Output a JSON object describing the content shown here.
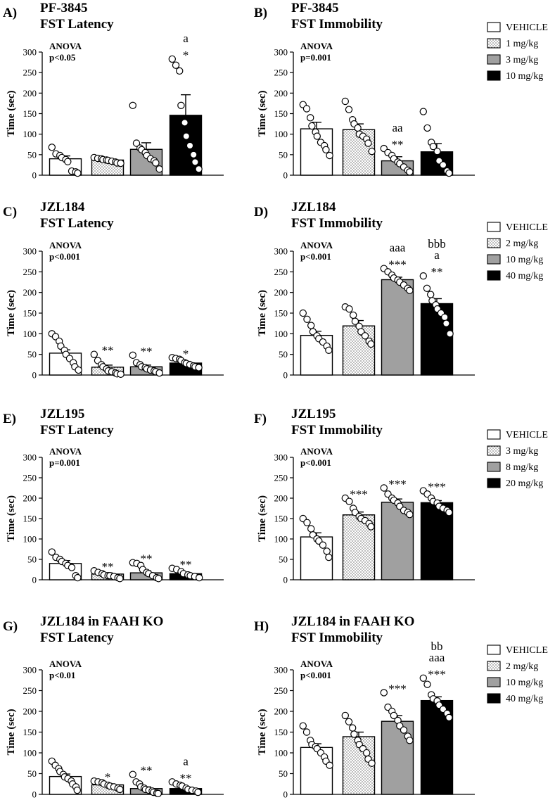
{
  "legends": [
    {
      "entries": [
        "VEHICLE",
        "1 mg/kg",
        "3 mg/kg",
        "10 mg/kg"
      ]
    },
    {
      "entries": [
        "VEHICLE",
        "2 mg/kg",
        "10 mg/kg",
        "40 mg/kg"
      ]
    },
    {
      "entries": [
        "VEHICLE",
        "3 mg/kg",
        "8 mg/kg",
        "20 mg/kg"
      ]
    },
    {
      "entries": [
        "VEHICLE",
        "2 mg/kg",
        "10 mg/kg",
        "40 mg/kg"
      ]
    }
  ],
  "fills": [
    "#ffffff",
    "dots",
    "#a0a0a0",
    "#000000"
  ],
  "chart_data": [
    {
      "type": "bar",
      "panel": "A)",
      "title": [
        "PF-3845",
        "FST Latency"
      ],
      "ylabel": "Time (sec)",
      "ylim": [
        0,
        300
      ],
      "yticks": [
        0,
        50,
        100,
        150,
        200,
        250,
        300
      ],
      "anova": [
        "ANOVA",
        "p<0.05"
      ],
      "values": [
        40,
        37,
        63,
        146
      ],
      "errors": [
        7,
        4,
        16,
        50
      ],
      "points": [
        [
          68,
          52,
          48,
          43,
          38,
          33,
          10,
          8,
          5
        ],
        [
          43,
          41,
          40,
          38,
          37,
          36,
          34,
          32,
          30,
          29
        ],
        [
          170,
          78,
          66,
          62,
          55,
          48,
          40,
          35,
          30,
          15
        ],
        [
          283,
          268,
          254,
          170,
          128,
          95,
          72,
          50,
          32,
          15
        ]
      ],
      "significance": [
        [],
        [],
        [],
        [
          "a",
          "*"
        ]
      ]
    },
    {
      "type": "bar",
      "panel": "B)",
      "title": [
        "PF-3845",
        "FST Immobility"
      ],
      "ylabel": "Time (sec)",
      "ylim": [
        0,
        300
      ],
      "yticks": [
        0,
        50,
        100,
        150,
        200,
        250,
        300
      ],
      "anova": [
        "ANOVA",
        "p=0.001"
      ],
      "values": [
        113,
        111,
        35,
        57
      ],
      "errors": [
        16,
        14,
        10,
        20
      ],
      "points": [
        [
          172,
          162,
          140,
          120,
          105,
          95,
          80,
          72,
          62,
          48
        ],
        [
          180,
          160,
          135,
          125,
          115,
          100,
          95,
          88,
          78,
          58
        ],
        [
          65,
          55,
          48,
          40,
          32,
          28,
          20,
          12,
          8
        ],
        [
          155,
          115,
          80,
          70,
          58,
          35,
          25,
          10,
          5
        ]
      ],
      "significance": [
        [],
        [],
        [
          "aa",
          "**"
        ],
        []
      ]
    },
    {
      "type": "bar",
      "panel": "C)",
      "title": [
        "JZL184",
        "FST Latency"
      ],
      "ylabel": "Time (sec)",
      "ylim": [
        0,
        300
      ],
      "yticks": [
        0,
        50,
        100,
        150,
        200,
        250,
        300
      ],
      "anova": [
        "ANOVA",
        "p<0.001"
      ],
      "values": [
        53,
        19,
        20,
        29
      ],
      "errors": [
        8,
        5,
        4,
        4
      ],
      "points": [
        [
          100,
          93,
          82,
          70,
          60,
          50,
          40,
          30,
          20,
          12
        ],
        [
          50,
          35,
          25,
          20,
          15,
          10,
          8,
          5,
          3,
          2
        ],
        [
          48,
          30,
          25,
          20,
          18,
          15,
          12,
          10,
          8,
          5
        ],
        [
          42,
          40,
          38,
          35,
          30,
          28,
          25,
          22,
          20,
          18
        ]
      ],
      "significance": [
        [],
        [
          "**"
        ],
        [
          "**"
        ],
        [
          "*"
        ]
      ]
    },
    {
      "type": "bar",
      "panel": "D)",
      "title": [
        "JZL184",
        "FST Immobility"
      ],
      "ylabel": "Time (sec)",
      "ylim": [
        0,
        300
      ],
      "yticks": [
        0,
        50,
        100,
        150,
        200,
        250,
        300
      ],
      "anova": [
        "ANOVA",
        "p<0.001"
      ],
      "values": [
        96,
        119,
        231,
        173
      ],
      "errors": [
        10,
        13,
        6,
        12
      ],
      "points": [
        [
          150,
          135,
          120,
          105,
          95,
          88,
          80,
          70,
          60
        ],
        [
          165,
          160,
          145,
          130,
          118,
          105,
          95,
          82,
          75
        ],
        [
          258,
          250,
          242,
          235,
          230,
          225,
          218,
          210,
          205
        ],
        [
          240,
          210,
          195,
          180,
          170,
          160,
          150,
          140,
          125,
          100
        ]
      ],
      "significance": [
        [],
        [],
        [
          "aaa",
          "***"
        ],
        [
          "bbb",
          "a",
          "**"
        ]
      ]
    },
    {
      "type": "bar",
      "panel": "E)",
      "title": [
        "JZL195",
        "FST Latency"
      ],
      "ylabel": "Time (sec)",
      "ylim": [
        0,
        300
      ],
      "yticks": [
        0,
        50,
        100,
        150,
        200,
        250,
        300
      ],
      "anova": [
        "ANOVA",
        "p=0.001"
      ],
      "values": [
        40,
        14,
        17,
        15
      ],
      "errors": [
        7,
        3,
        5,
        3
      ],
      "points": [
        [
          68,
          55,
          50,
          45,
          40,
          35,
          30,
          10,
          5
        ],
        [
          22,
          18,
          15,
          12,
          10,
          10,
          8,
          5,
          3
        ],
        [
          42,
          40,
          35,
          25,
          18,
          15,
          10,
          5,
          3
        ],
        [
          28,
          25,
          20,
          15,
          12,
          10,
          8,
          5
        ]
      ],
      "significance": [
        [],
        [
          "**"
        ],
        [
          "**"
        ],
        [
          "**"
        ]
      ]
    },
    {
      "type": "bar",
      "panel": "F)",
      "title": [
        "JZL195",
        "FST Immobility"
      ],
      "ylabel": "Time (sec)",
      "ylim": [
        0,
        300
      ],
      "yticks": [
        0,
        50,
        100,
        150,
        200,
        250,
        300
      ],
      "anova": [
        "ANOVA",
        "p<0.001"
      ],
      "values": [
        105,
        159,
        190,
        189
      ],
      "errors": [
        10,
        7,
        8,
        5
      ],
      "points": [
        [
          150,
          140,
          125,
          110,
          100,
          95,
          85,
          70,
          55
        ],
        [
          200,
          192,
          175,
          165,
          155,
          150,
          145,
          138,
          130
        ],
        [
          225,
          210,
          200,
          195,
          188,
          180,
          170,
          165,
          160
        ],
        [
          218,
          210,
          200,
          192,
          188,
          180,
          175,
          170,
          165
        ]
      ],
      "significance": [
        [],
        [
          "***"
        ],
        [
          "***"
        ],
        [
          "***"
        ]
      ]
    },
    {
      "type": "bar",
      "panel": "G)",
      "title": [
        "JZL184 in FAAH KO",
        "FST Latency"
      ],
      "ylabel": "Time (sec)",
      "ylim": [
        0,
        300
      ],
      "yticks": [
        0,
        50,
        100,
        150,
        200,
        250,
        300
      ],
      "anova": [
        "ANOVA",
        "p<0.01"
      ],
      "values": [
        43,
        23,
        14,
        14
      ],
      "errors": [
        6,
        3,
        4,
        3
      ],
      "points": [
        [
          80,
          70,
          62,
          55,
          48,
          42,
          38,
          32,
          25,
          18,
          10
        ],
        [
          32,
          30,
          28,
          25,
          22,
          20,
          18,
          15,
          12
        ],
        [
          48,
          30,
          25,
          18,
          15,
          12,
          10,
          8,
          5,
          3,
          2
        ],
        [
          30,
          25,
          22,
          20,
          15,
          12,
          10,
          8,
          5
        ]
      ],
      "significance": [
        [],
        [
          "*"
        ],
        [
          "**"
        ],
        [
          "a",
          "**"
        ]
      ]
    },
    {
      "type": "bar",
      "panel": "H)",
      "title": [
        "JZL184 in FAAH KO",
        "FST Immobility"
      ],
      "ylabel": "Time (sec)",
      "ylim": [
        0,
        300
      ],
      "yticks": [
        0,
        50,
        100,
        150,
        200,
        250,
        300
      ],
      "anova": [
        "ANOVA",
        "p<0.001"
      ],
      "values": [
        113,
        139,
        176,
        226
      ],
      "errors": [
        9,
        11,
        14,
        9
      ],
      "points": [
        [
          165,
          150,
          130,
          120,
          115,
          110,
          100,
          90,
          80,
          70
        ],
        [
          190,
          175,
          160,
          145,
          130,
          120,
          110,
          100,
          85,
          75
        ],
        [
          245,
          210,
          200,
          190,
          178,
          165,
          155,
          140,
          130
        ],
        [
          280,
          265,
          240,
          230,
          225,
          215,
          205,
          195,
          185
        ]
      ],
      "significance": [
        [],
        [],
        [
          "***"
        ],
        [
          "bb",
          "aaa",
          "***"
        ]
      ]
    }
  ]
}
